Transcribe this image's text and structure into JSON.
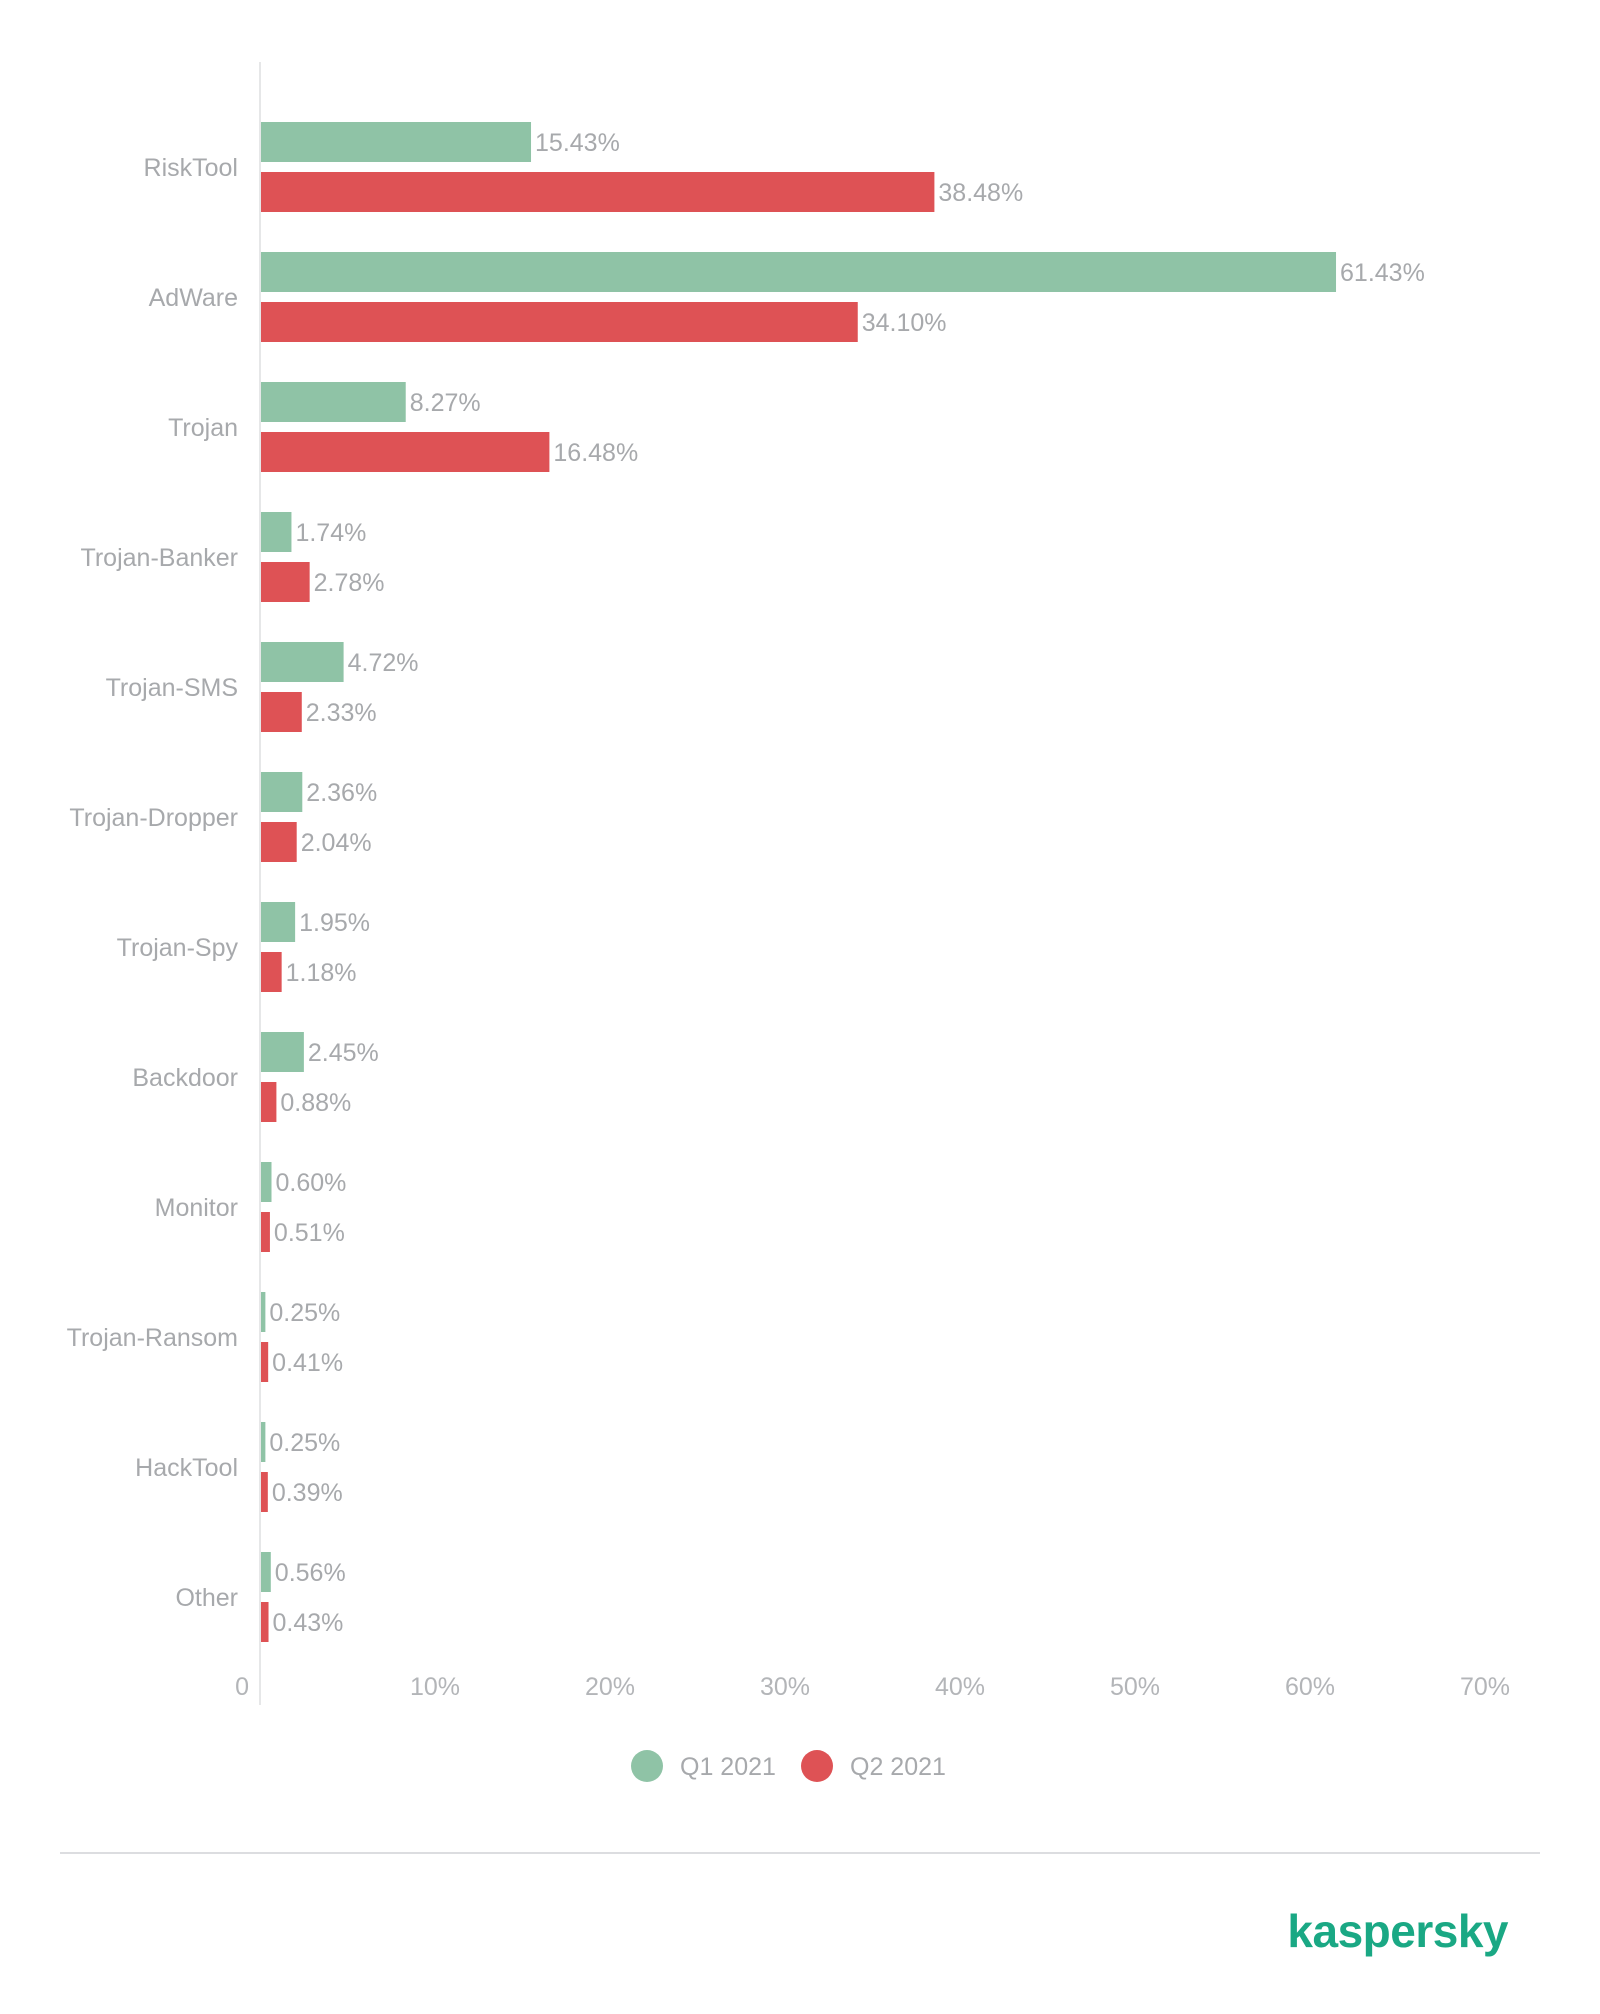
{
  "chart_data": {
    "type": "bar",
    "orientation": "horizontal",
    "categories": [
      "RiskTool",
      "AdWare",
      "Trojan",
      "Trojan-Banker",
      "Trojan-SMS",
      "Trojan-Dropper",
      "Trojan-Spy",
      "Backdoor",
      "Monitor",
      "Trojan-Ransom",
      "HackTool",
      "Other"
    ],
    "series": [
      {
        "name": "Q1 2021",
        "color": "#8fc3a6",
        "values": [
          15.43,
          61.43,
          8.27,
          1.74,
          4.72,
          2.36,
          1.95,
          2.45,
          0.6,
          0.25,
          0.25,
          0.56
        ],
        "labels": [
          "15.43%",
          "61.43%",
          "8.27%",
          "1.74%",
          "4.72%",
          "2.36%",
          "1.95%",
          "2.45%",
          "0.60%",
          "0.25%",
          "0.25%",
          "0.56%"
        ]
      },
      {
        "name": "Q2 2021",
        "color": "#de5255",
        "values": [
          38.48,
          34.1,
          16.48,
          2.78,
          2.33,
          2.04,
          1.18,
          0.88,
          0.51,
          0.41,
          0.39,
          0.43
        ],
        "labels": [
          "38.48%",
          "34.10%",
          "16.48%",
          "2.78%",
          "2.33%",
          "2.04%",
          "1.18%",
          "0.88%",
          "0.51%",
          "0.41%",
          "0.39%",
          "0.43%"
        ]
      }
    ],
    "xlim": [
      0,
      70
    ],
    "xticks": [
      0,
      10,
      20,
      30,
      40,
      50,
      60,
      70
    ],
    "xtick_labels": [
      "0",
      "10%",
      "20%",
      "30%",
      "40%",
      "50%",
      "60%",
      "70%"
    ],
    "grid": false,
    "legend_position": "bottom-center",
    "title": "",
    "xlabel": "",
    "ylabel": ""
  },
  "brand": {
    "logo_text": "kaspersky",
    "logo_color": "#1aa884"
  }
}
